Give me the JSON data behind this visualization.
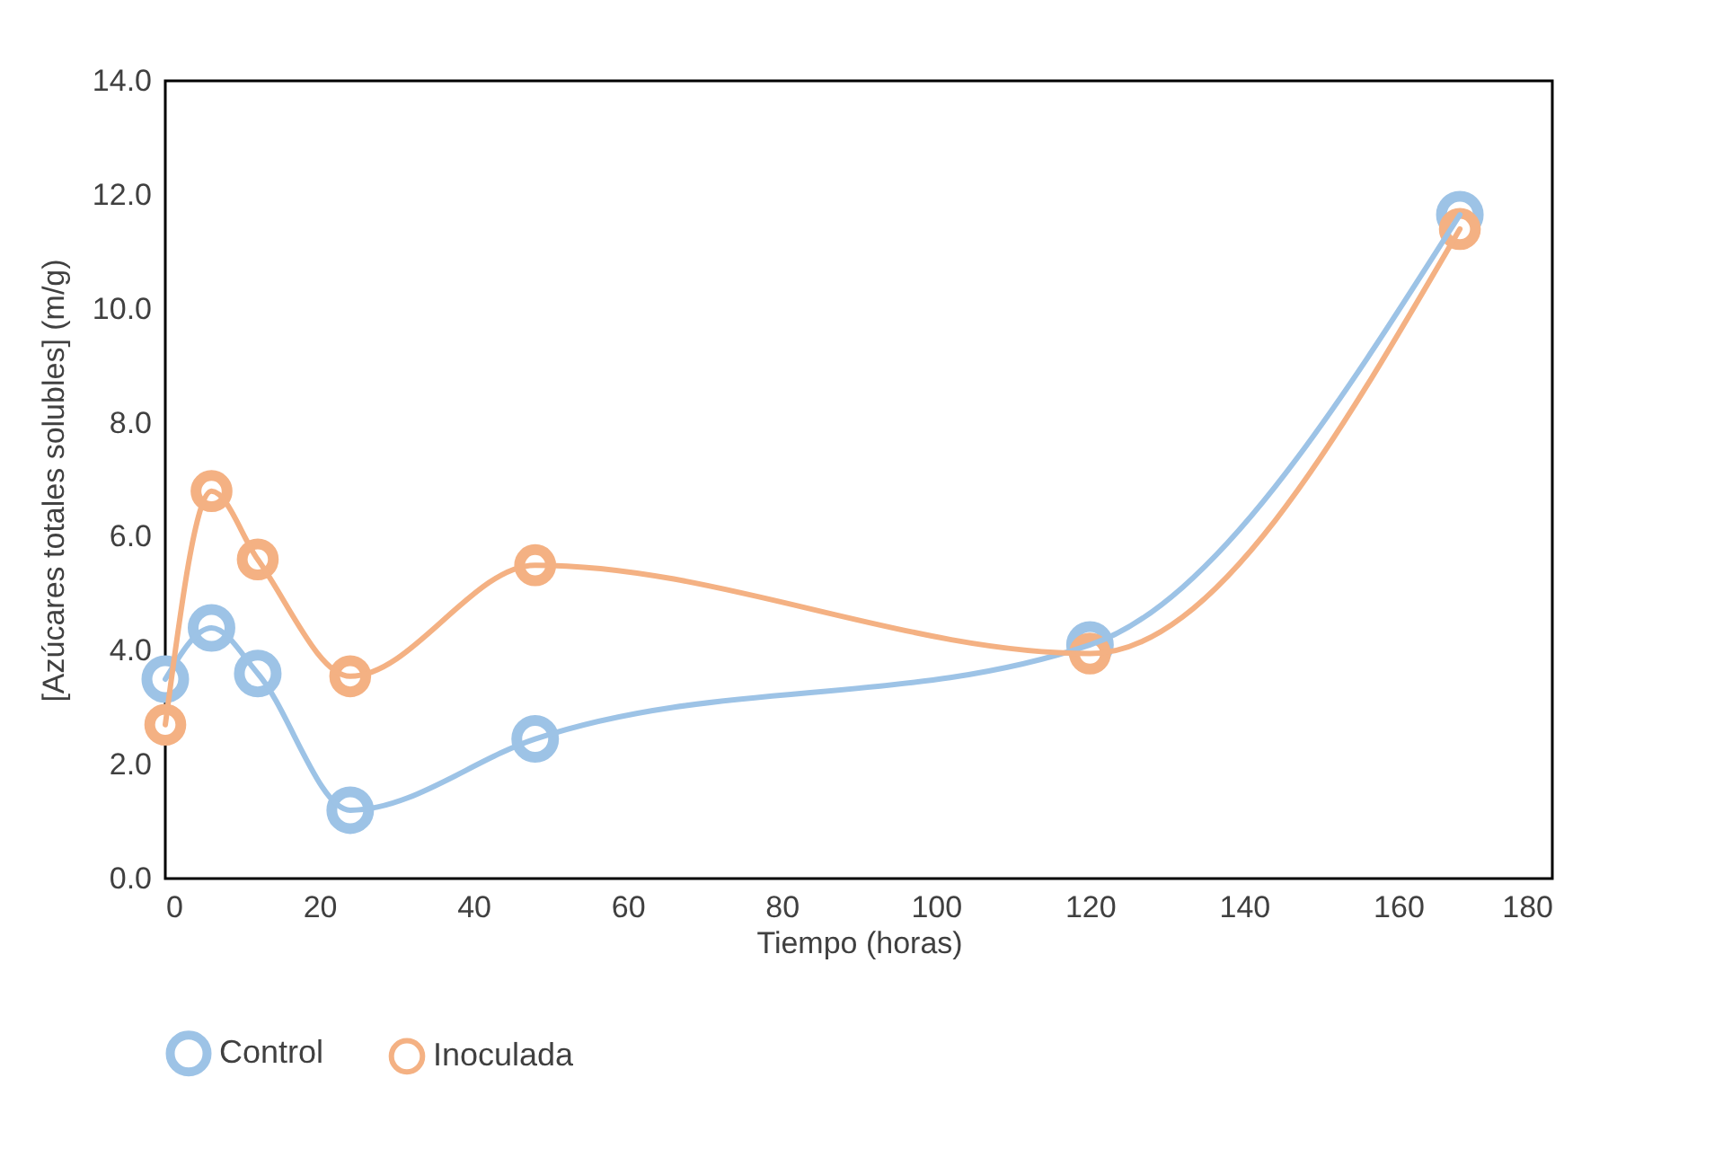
{
  "chart_data": {
    "type": "line",
    "xlabel": "Tiempo (horas)",
    "ylabel": "[Azúcares totales solubles] (m/g)",
    "xlim": [
      0,
      180
    ],
    "xticks": [
      0,
      20,
      40,
      60,
      80,
      100,
      120,
      140,
      160,
      180
    ],
    "ylim": [
      0,
      14
    ],
    "yticks": [
      {
        "value": 0,
        "label": "0.0"
      },
      {
        "value": 2,
        "label": "2.0"
      },
      {
        "value": 4,
        "label": "4.0"
      },
      {
        "value": 6,
        "label": "6.0"
      },
      {
        "value": 8,
        "label": "8.0"
      },
      {
        "value": 10,
        "label": "10.0"
      },
      {
        "value": 12,
        "label": "12.0"
      },
      {
        "value": 14,
        "label": "14.0"
      }
    ],
    "x": [
      0,
      6,
      12,
      24,
      48,
      120,
      168
    ],
    "series": [
      {
        "name": "Control",
        "color": "#9dc3e6",
        "values": [
          3.5,
          4.4,
          3.6,
          1.2,
          2.45,
          4.1,
          11.65
        ]
      },
      {
        "name": "Inoculada",
        "color": "#f4b183",
        "values": [
          2.7,
          6.8,
          5.6,
          3.55,
          5.5,
          3.95,
          11.4
        ]
      }
    ],
    "marker": "circle",
    "line_style": "solid",
    "grid": false,
    "legend": "bottom"
  }
}
